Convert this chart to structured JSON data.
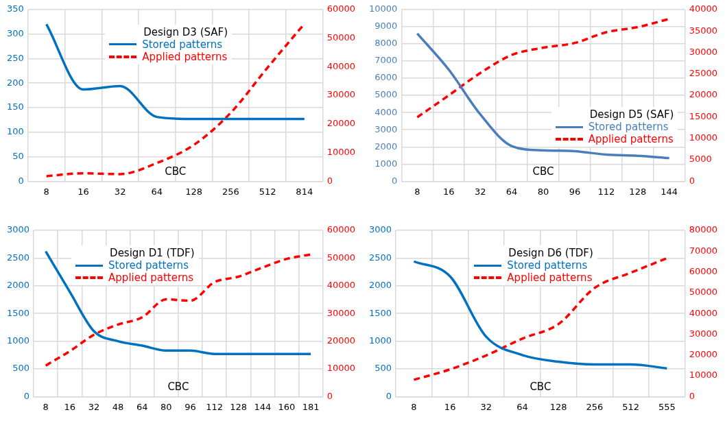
{
  "chart_data": [
    {
      "type": "line",
      "legend_title": "Design D3 (SAF)",
      "xlabel": "CBC",
      "categories": [
        "8",
        "16",
        "32",
        "64",
        "128",
        "256",
        "512",
        "814"
      ],
      "series": [
        {
          "name": "Stored patterns",
          "color": "#0070c0",
          "line_style": "solid",
          "values": [
            320,
            187,
            194,
            131,
            127,
            127,
            127,
            127
          ]
        },
        {
          "name": "Applied patterns",
          "color": "#ff0000",
          "line_style": "dashed",
          "axis": "y2",
          "values": [
            1800,
            2800,
            2500,
            6400,
            12700,
            23900,
            39700,
            55000
          ]
        }
      ],
      "ylim": [
        0,
        350
      ],
      "yticks": [
        0,
        50,
        100,
        150,
        200,
        250,
        300,
        350
      ],
      "y2lim": [
        0,
        60000
      ],
      "y2ticks": [
        0,
        10000,
        20000,
        30000,
        40000,
        50000,
        60000
      ],
      "grid": true,
      "legend": "top",
      "marker": "none"
    },
    {
      "type": "line",
      "legend_title": "Design D5 (SAF)",
      "xlabel": "CBC",
      "categories": [
        "8",
        "16",
        "32",
        "64",
        "80",
        "96",
        "112",
        "128",
        "144"
      ],
      "series": [
        {
          "name": "Stored patterns",
          "color": "#4a7ebb",
          "line_style": "solid",
          "values": [
            8600,
            6500,
            3900,
            2050,
            1800,
            1750,
            1550,
            1480,
            1350
          ]
        },
        {
          "name": "Applied patterns",
          "color": "#ff0000",
          "line_style": "dashed",
          "axis": "y2",
          "values": [
            14900,
            20000,
            25200,
            29400,
            31100,
            32200,
            34700,
            35900,
            37800
          ]
        }
      ],
      "ylim": [
        0,
        10000
      ],
      "yticks": [
        0,
        1000,
        2000,
        3000,
        4000,
        5000,
        6000,
        7000,
        8000,
        9000,
        10000
      ],
      "y2lim": [
        0,
        40000
      ],
      "y2ticks": [
        0,
        5000,
        10000,
        15000,
        20000,
        25000,
        30000,
        35000,
        40000
      ],
      "grid": true,
      "legend": "bottom right",
      "marker": "none"
    },
    {
      "type": "line",
      "legend_title": "Design D1 (TDF)",
      "xlabel": "CBC",
      "categories": [
        "8",
        "16",
        "32",
        "48",
        "64",
        "80",
        "96",
        "112",
        "128",
        "144",
        "160",
        "181"
      ],
      "series": [
        {
          "name": "Stored patterns",
          "color": "#0070c0",
          "line_style": "solid",
          "values": [
            2620,
            1890,
            1180,
            1000,
            920,
            830,
            830,
            770,
            770,
            770,
            770,
            770
          ]
        },
        {
          "name": "Applied patterns",
          "color": "#ff0000",
          "line_style": "dashed",
          "axis": "y2",
          "values": [
            11200,
            16400,
            22300,
            26000,
            28600,
            35100,
            34600,
            41300,
            43300,
            46600,
            49700,
            51300
          ]
        }
      ],
      "ylim": [
        0,
        3000
      ],
      "yticks": [
        0,
        500,
        1000,
        1500,
        2000,
        2500,
        3000
      ],
      "y2lim": [
        0,
        60000
      ],
      "y2ticks": [
        0,
        10000,
        20000,
        30000,
        40000,
        50000,
        60000
      ],
      "grid": true,
      "legend": "top left",
      "marker": "none"
    },
    {
      "type": "line",
      "legend_title": "Design D6 (TDF)",
      "xlabel": "CBC",
      "categories": [
        "8",
        "16",
        "32",
        "64",
        "128",
        "256",
        "512",
        "555"
      ],
      "series": [
        {
          "name": "Stored patterns",
          "color": "#0070c0",
          "line_style": "solid",
          "values": [
            2440,
            2170,
            1080,
            750,
            630,
            580,
            580,
            510
          ]
        },
        {
          "name": "Applied patterns",
          "color": "#ff0000",
          "line_style": "dashed",
          "axis": "y2",
          "values": [
            8100,
            13100,
            19800,
            27900,
            34900,
            52300,
            59600,
            66600
          ]
        }
      ],
      "ylim": [
        0,
        3000
      ],
      "yticks": [
        0,
        500,
        1000,
        1500,
        2000,
        2500,
        3000
      ],
      "y2lim": [
        0,
        80000
      ],
      "y2ticks": [
        0,
        10000,
        20000,
        30000,
        40000,
        50000,
        60000,
        70000,
        80000
      ],
      "grid": true,
      "legend": "top",
      "marker": "none"
    }
  ]
}
